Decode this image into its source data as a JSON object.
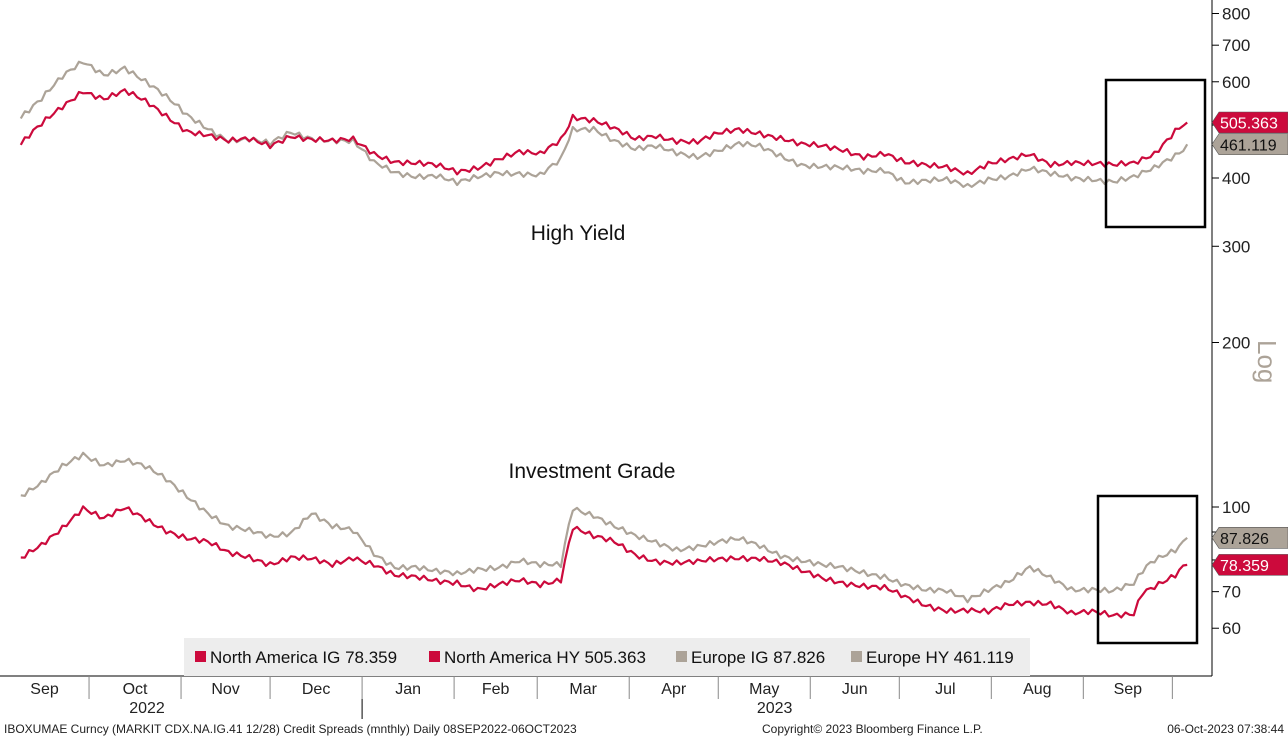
{
  "colors": {
    "north_america": "#cc0a3c",
    "europe": "#aca398",
    "legend_bg": "#ededed",
    "box": "#000000"
  },
  "chart_data": {
    "type": "line",
    "title": "",
    "x_range": [
      "2022-09-01",
      "2023-10-12"
    ],
    "y_range": [
      50,
      850
    ],
    "y_scale": "log",
    "y_scale_label": "Log",
    "y_ticks": [
      60,
      70,
      100,
      200,
      300,
      400,
      500,
      600,
      700,
      800
    ],
    "y_tick_labels": [
      "60",
      "70",
      "100",
      "200",
      "300",
      "400",
      "",
      "600",
      "700",
      "800"
    ],
    "month_ticks": [
      "Sep",
      "Oct",
      "Nov",
      "Dec",
      "Jan",
      "Feb",
      "Mar",
      "Apr",
      "May",
      "Jun",
      "Jul",
      "Aug",
      "Sep"
    ],
    "year_labels": [
      "2022",
      "2023"
    ],
    "annotations": [
      "High Yield",
      "Investment Grade"
    ],
    "grid": false,
    "legend_position": "bottom-center",
    "series": [
      {
        "name": "North America IG 78.359",
        "last_value": "78.359",
        "color": "#cc0a3c",
        "points": [
          [
            "2022-09-08",
            80
          ],
          [
            "2022-09-15",
            85
          ],
          [
            "2022-09-22",
            92
          ],
          [
            "2022-09-29",
            100
          ],
          [
            "2022-10-06",
            95
          ],
          [
            "2022-10-13",
            99
          ],
          [
            "2022-10-20",
            95
          ],
          [
            "2022-10-27",
            91
          ],
          [
            "2022-11-03",
            88
          ],
          [
            "2022-11-10",
            86
          ],
          [
            "2022-11-17",
            82
          ],
          [
            "2022-11-24",
            81
          ],
          [
            "2022-12-01",
            79
          ],
          [
            "2022-12-08",
            81
          ],
          [
            "2022-12-15",
            80
          ],
          [
            "2022-12-22",
            78
          ],
          [
            "2022-12-29",
            81
          ],
          [
            "2023-01-05",
            79
          ],
          [
            "2023-01-12",
            75
          ],
          [
            "2023-01-19",
            74
          ],
          [
            "2023-01-26",
            73
          ],
          [
            "2023-02-02",
            73
          ],
          [
            "2023-02-09",
            71
          ],
          [
            "2023-02-16",
            72
          ],
          [
            "2023-02-23",
            73
          ],
          [
            "2023-03-02",
            72
          ],
          [
            "2023-03-09",
            74
          ],
          [
            "2023-03-13",
            92
          ],
          [
            "2023-03-20",
            88
          ],
          [
            "2023-03-27",
            86
          ],
          [
            "2023-04-03",
            82
          ],
          [
            "2023-04-10",
            80
          ],
          [
            "2023-04-17",
            79
          ],
          [
            "2023-04-24",
            79
          ],
          [
            "2023-05-01",
            80
          ],
          [
            "2023-05-08",
            81
          ],
          [
            "2023-05-15",
            81
          ],
          [
            "2023-05-22",
            79
          ],
          [
            "2023-05-29",
            76
          ],
          [
            "2023-06-05",
            74
          ],
          [
            "2023-06-12",
            73
          ],
          [
            "2023-06-19",
            72
          ],
          [
            "2023-06-26",
            71
          ],
          [
            "2023-07-03",
            68
          ],
          [
            "2023-07-10",
            66
          ],
          [
            "2023-07-17",
            65
          ],
          [
            "2023-07-24",
            65
          ],
          [
            "2023-07-31",
            64
          ],
          [
            "2023-08-07",
            66
          ],
          [
            "2023-08-14",
            67
          ],
          [
            "2023-08-21",
            67
          ],
          [
            "2023-08-28",
            64
          ],
          [
            "2023-09-04",
            64
          ],
          [
            "2023-09-11",
            63
          ],
          [
            "2023-09-18",
            64
          ],
          [
            "2023-09-21",
            70
          ],
          [
            "2023-09-25",
            72
          ],
          [
            "2023-10-02",
            75
          ],
          [
            "2023-10-06",
            78.359
          ]
        ]
      },
      {
        "name": "North America HY 505.363",
        "last_value": "505.363",
        "color": "#cc0a3c",
        "points": [
          [
            "2022-09-08",
            460
          ],
          [
            "2022-09-15",
            500
          ],
          [
            "2022-09-22",
            540
          ],
          [
            "2022-09-29",
            580
          ],
          [
            "2022-10-06",
            560
          ],
          [
            "2022-10-13",
            575
          ],
          [
            "2022-10-20",
            550
          ],
          [
            "2022-10-27",
            520
          ],
          [
            "2022-11-03",
            490
          ],
          [
            "2022-11-10",
            480
          ],
          [
            "2022-11-17",
            465
          ],
          [
            "2022-11-24",
            470
          ],
          [
            "2022-12-01",
            460
          ],
          [
            "2022-12-08",
            480
          ],
          [
            "2022-12-15",
            470
          ],
          [
            "2022-12-22",
            465
          ],
          [
            "2022-12-29",
            470
          ],
          [
            "2023-01-05",
            445
          ],
          [
            "2023-01-12",
            430
          ],
          [
            "2023-01-19",
            425
          ],
          [
            "2023-01-26",
            420
          ],
          [
            "2023-02-02",
            410
          ],
          [
            "2023-02-09",
            420
          ],
          [
            "2023-02-16",
            435
          ],
          [
            "2023-02-23",
            445
          ],
          [
            "2023-03-02",
            440
          ],
          [
            "2023-03-09",
            470
          ],
          [
            "2023-03-13",
            520
          ],
          [
            "2023-03-20",
            510
          ],
          [
            "2023-03-27",
            490
          ],
          [
            "2023-04-03",
            470
          ],
          [
            "2023-04-10",
            480
          ],
          [
            "2023-04-17",
            470
          ],
          [
            "2023-04-24",
            465
          ],
          [
            "2023-05-01",
            480
          ],
          [
            "2023-05-08",
            490
          ],
          [
            "2023-05-15",
            485
          ],
          [
            "2023-05-22",
            475
          ],
          [
            "2023-05-29",
            460
          ],
          [
            "2023-06-05",
            455
          ],
          [
            "2023-06-12",
            450
          ],
          [
            "2023-06-19",
            440
          ],
          [
            "2023-06-26",
            445
          ],
          [
            "2023-07-03",
            425
          ],
          [
            "2023-07-10",
            420
          ],
          [
            "2023-07-17",
            420
          ],
          [
            "2023-07-24",
            410
          ],
          [
            "2023-07-31",
            425
          ],
          [
            "2023-08-07",
            430
          ],
          [
            "2023-08-14",
            440
          ],
          [
            "2023-08-21",
            425
          ],
          [
            "2023-08-28",
            430
          ],
          [
            "2023-09-04",
            425
          ],
          [
            "2023-09-11",
            420
          ],
          [
            "2023-09-18",
            425
          ],
          [
            "2023-09-25",
            445
          ],
          [
            "2023-10-02",
            490
          ],
          [
            "2023-10-06",
            505.363
          ]
        ]
      },
      {
        "name": "Europe IG 87.826",
        "last_value": "87.826",
        "color": "#aca398",
        "points": [
          [
            "2022-09-08",
            105
          ],
          [
            "2022-09-15",
            110
          ],
          [
            "2022-09-22",
            118
          ],
          [
            "2022-09-29",
            125
          ],
          [
            "2022-10-06",
            120
          ],
          [
            "2022-10-13",
            122
          ],
          [
            "2022-10-20",
            118
          ],
          [
            "2022-10-27",
            112
          ],
          [
            "2022-11-03",
            105
          ],
          [
            "2022-11-10",
            98
          ],
          [
            "2022-11-17",
            92
          ],
          [
            "2022-11-24",
            90
          ],
          [
            "2022-12-01",
            88
          ],
          [
            "2022-12-08",
            90
          ],
          [
            "2022-12-15",
            98
          ],
          [
            "2022-12-22",
            92
          ],
          [
            "2022-12-29",
            90
          ],
          [
            "2023-01-05",
            82
          ],
          [
            "2023-01-12",
            78
          ],
          [
            "2023-01-19",
            78
          ],
          [
            "2023-01-26",
            76
          ],
          [
            "2023-02-02",
            75
          ],
          [
            "2023-02-09",
            77
          ],
          [
            "2023-02-16",
            78
          ],
          [
            "2023-02-23",
            80
          ],
          [
            "2023-03-02",
            78
          ],
          [
            "2023-03-09",
            78
          ],
          [
            "2023-03-13",
            100
          ],
          [
            "2023-03-20",
            97
          ],
          [
            "2023-03-27",
            92
          ],
          [
            "2023-04-03",
            88
          ],
          [
            "2023-04-10",
            86
          ],
          [
            "2023-04-17",
            84
          ],
          [
            "2023-04-24",
            85
          ],
          [
            "2023-05-01",
            86
          ],
          [
            "2023-05-08",
            87
          ],
          [
            "2023-05-15",
            85
          ],
          [
            "2023-05-22",
            82
          ],
          [
            "2023-05-29",
            80
          ],
          [
            "2023-06-05",
            78
          ],
          [
            "2023-06-12",
            77
          ],
          [
            "2023-06-19",
            76
          ],
          [
            "2023-06-26",
            75
          ],
          [
            "2023-07-03",
            72
          ],
          [
            "2023-07-10",
            70
          ],
          [
            "2023-07-17",
            70
          ],
          [
            "2023-07-24",
            68
          ],
          [
            "2023-07-31",
            71
          ],
          [
            "2023-08-07",
            73
          ],
          [
            "2023-08-14",
            77
          ],
          [
            "2023-08-21",
            74
          ],
          [
            "2023-08-28",
            71
          ],
          [
            "2023-09-04",
            71
          ],
          [
            "2023-09-11",
            70
          ],
          [
            "2023-09-18",
            72
          ],
          [
            "2023-09-21",
            76
          ],
          [
            "2023-09-25",
            80
          ],
          [
            "2023-10-02",
            84
          ],
          [
            "2023-10-06",
            87.826
          ]
        ]
      },
      {
        "name": "Europe HY 461.119",
        "last_value": "461.119",
        "color": "#aca398",
        "points": [
          [
            "2022-09-08",
            520
          ],
          [
            "2022-09-15",
            560
          ],
          [
            "2022-09-22",
            610
          ],
          [
            "2022-09-29",
            650
          ],
          [
            "2022-10-06",
            620
          ],
          [
            "2022-10-13",
            640
          ],
          [
            "2022-10-20",
            600
          ],
          [
            "2022-10-27",
            560
          ],
          [
            "2022-11-03",
            520
          ],
          [
            "2022-11-10",
            495
          ],
          [
            "2022-11-17",
            470
          ],
          [
            "2022-11-24",
            470
          ],
          [
            "2022-12-01",
            460
          ],
          [
            "2022-12-08",
            485
          ],
          [
            "2022-12-15",
            475
          ],
          [
            "2022-12-22",
            470
          ],
          [
            "2022-12-29",
            465
          ],
          [
            "2023-01-05",
            425
          ],
          [
            "2023-01-12",
            410
          ],
          [
            "2023-01-19",
            405
          ],
          [
            "2023-01-26",
            405
          ],
          [
            "2023-02-02",
            390
          ],
          [
            "2023-02-09",
            400
          ],
          [
            "2023-02-16",
            410
          ],
          [
            "2023-02-23",
            410
          ],
          [
            "2023-03-02",
            405
          ],
          [
            "2023-03-09",
            430
          ],
          [
            "2023-03-13",
            490
          ],
          [
            "2023-03-20",
            495
          ],
          [
            "2023-03-27",
            470
          ],
          [
            "2023-04-03",
            450
          ],
          [
            "2023-04-10",
            455
          ],
          [
            "2023-04-17",
            445
          ],
          [
            "2023-04-24",
            440
          ],
          [
            "2023-05-01",
            450
          ],
          [
            "2023-05-08",
            460
          ],
          [
            "2023-05-15",
            455
          ],
          [
            "2023-05-22",
            440
          ],
          [
            "2023-05-29",
            425
          ],
          [
            "2023-06-05",
            420
          ],
          [
            "2023-06-12",
            415
          ],
          [
            "2023-06-19",
            410
          ],
          [
            "2023-06-26",
            415
          ],
          [
            "2023-07-03",
            395
          ],
          [
            "2023-07-10",
            395
          ],
          [
            "2023-07-17",
            395
          ],
          [
            "2023-07-24",
            385
          ],
          [
            "2023-07-31",
            400
          ],
          [
            "2023-08-07",
            405
          ],
          [
            "2023-08-14",
            415
          ],
          [
            "2023-08-21",
            405
          ],
          [
            "2023-08-28",
            400
          ],
          [
            "2023-09-04",
            400
          ],
          [
            "2023-09-11",
            395
          ],
          [
            "2023-09-18",
            400
          ],
          [
            "2023-09-25",
            415
          ],
          [
            "2023-10-02",
            440
          ],
          [
            "2023-10-06",
            461.119
          ]
        ]
      }
    ]
  },
  "legend": {
    "items": [
      {
        "label": "North America IG 78.359",
        "color": "#cc0a3c"
      },
      {
        "label": "North America HY 505.363",
        "color": "#cc0a3c"
      },
      {
        "label": "Europe IG 87.826",
        "color": "#aca398"
      },
      {
        "label": "Europe HY 461.119",
        "color": "#aca398"
      }
    ]
  },
  "footer": {
    "left": "IBOXUMAE Curncy (MARKIT CDX.NA.IG.41 12/28) Credit Spreads (mnthly)  Daily 08SEP2022-06OCT2023",
    "center": "Copyright© 2023 Bloomberg Finance L.P.",
    "right": "06-Oct-2023 07:38:44"
  }
}
